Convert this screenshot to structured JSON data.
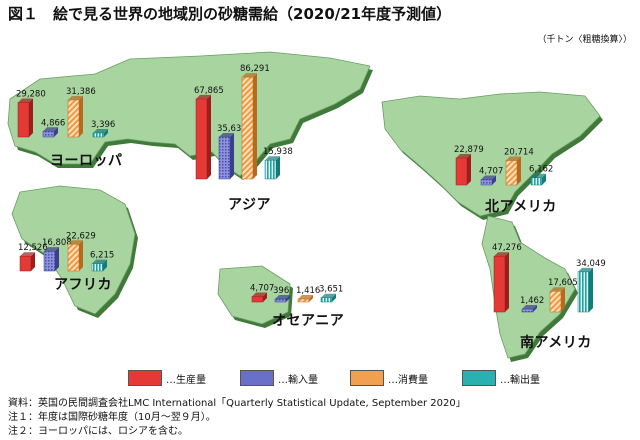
{
  "title": "図１　絵で見る世界の地域別の砂糖需給（2020/21年度予測値）",
  "unit": "（千トン〈粗糖換算〉）",
  "colors": {
    "ocean": "#ffffff",
    "land": "#a8d4a0",
    "land_shadow": "#3f7a3a",
    "production": "#e53935",
    "imports": "#6a6fc8",
    "consumption": "#f0a050",
    "exports": "#2ab0b0"
  },
  "legend": [
    {
      "key": "production",
      "label": "…生産量"
    },
    {
      "key": "imports",
      "label": "…輸入量"
    },
    {
      "key": "consumption",
      "label": "…消費量"
    },
    {
      "key": "exports",
      "label": "…輸出量"
    }
  ],
  "chart_data": {
    "type": "bar",
    "title": "図１　絵で見る世界の地域別の砂糖需給（2020/21年度予測値）",
    "unit": "千トン〈粗糖換算〉",
    "categories": [
      "ヨーロッパ",
      "アジア",
      "アフリカ",
      "オセアニア",
      "北アメリカ",
      "南アメリカ"
    ],
    "series": [
      {
        "name": "生産量",
        "values": [
          29280,
          67865,
          12526,
          4707,
          22879,
          47276
        ],
        "labels": [
          "29,280",
          "67,865",
          "12,526",
          "4,707",
          "22,879",
          "47,276"
        ]
      },
      {
        "name": "輸入量",
        "values": [
          4866,
          35631,
          16808,
          396,
          4707,
          1462
        ],
        "labels": [
          "4,866",
          "35,631",
          "16,808",
          "396",
          "4,707",
          "1,462"
        ]
      },
      {
        "name": "消費量",
        "values": [
          31386,
          86291,
          22629,
          1416,
          20714,
          17605
        ],
        "labels": [
          "31,386",
          "86,291",
          "22,629",
          "1,416",
          "20,714",
          "17,605"
        ]
      },
      {
        "name": "輸出量",
        "values": [
          3396,
          15938,
          6215,
          3651,
          6162,
          34049
        ],
        "labels": [
          "3,396",
          "15,938",
          "6,215",
          "3,651",
          "6,162",
          "34,049"
        ]
      }
    ],
    "legend_position": "bottom",
    "background": "world map"
  },
  "notes": [
    "資料：英国の民間調査会社LMC International「Quarterly Statistical Update, September 2020」",
    "注１：年度は国際砂糖年度（10月～翌９月）。",
    "注２：ヨーロッパには、ロシアを含む。"
  ]
}
